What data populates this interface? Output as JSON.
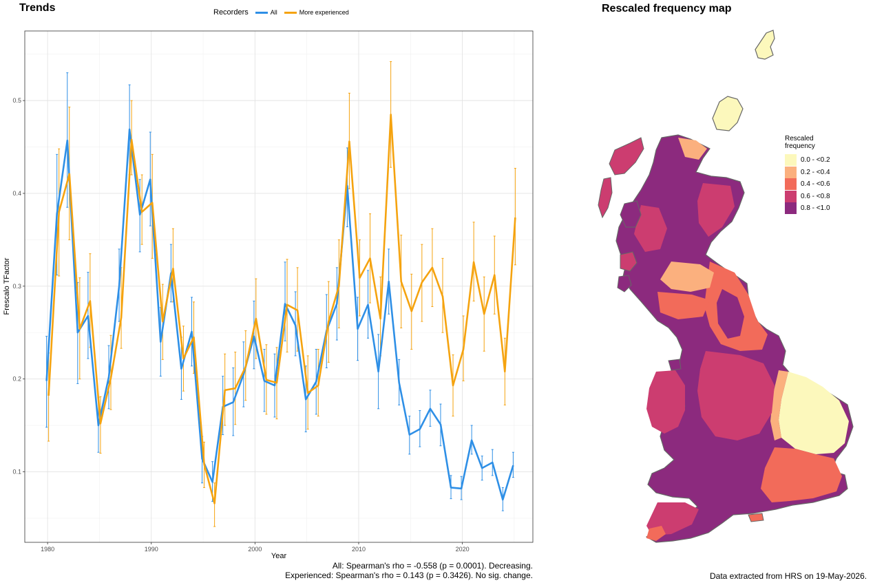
{
  "panels": {
    "trends_title": "Trends",
    "map_title": "Rescaled frequency map"
  },
  "legend": {
    "title": "Recorders",
    "items": [
      {
        "label": "All",
        "color": "#2E8FE6"
      },
      {
        "label": "More experienced",
        "color": "#F5A30F"
      }
    ]
  },
  "stats": {
    "line1": "All: Spearman's rho = -0.558 (p = 0.0001). Decreasing.",
    "line2": "Experienced: Spearman's rho = 0.143 (p = 0.3426). No sig. change."
  },
  "map_legend": {
    "title_line1": "Rescaled",
    "title_line2": "frequency",
    "classes": [
      {
        "label": "0.0 - <0.2",
        "color": "#FCF8BC"
      },
      {
        "label": "0.2 - <0.4",
        "color": "#FBB07E"
      },
      {
        "label": "0.4 - <0.6",
        "color": "#F26B5A"
      },
      {
        "label": "0.6 - <0.8",
        "color": "#CC3D70"
      },
      {
        "label": "0.8 - <1.0",
        "color": "#8C2A7E"
      }
    ]
  },
  "data_note": "Data extracted from HRS on 19-May-2026.",
  "chart_data": {
    "type": "line",
    "xlabel": "Year",
    "ylabel": "Frescalo TFactor",
    "xlim": [
      1977.8,
      2026.8
    ],
    "ylim": [
      0.024,
      0.575
    ],
    "x_ticks": [
      1980,
      1990,
      2000,
      2010,
      2020
    ],
    "y_ticks": [
      0.1,
      0.2,
      0.3,
      0.4,
      0.5
    ],
    "grid": true,
    "legend_position": "top",
    "error_bars": true,
    "series": [
      {
        "name": "All",
        "color": "#2E8FE6",
        "points": [
          [
            1980,
            0.198,
            0.148,
            0.246
          ],
          [
            1981,
            0.378,
            0.312,
            0.442
          ],
          [
            1982,
            0.457,
            0.385,
            0.53
          ],
          [
            1983,
            0.25,
            0.195,
            0.304
          ],
          [
            1984,
            0.268,
            0.222,
            0.315
          ],
          [
            1985,
            0.15,
            0.121,
            0.18
          ],
          [
            1986,
            0.202,
            0.168,
            0.236
          ],
          [
            1987,
            0.3,
            0.262,
            0.34
          ],
          [
            1988,
            0.469,
            0.42,
            0.517
          ],
          [
            1989,
            0.377,
            0.337,
            0.415
          ],
          [
            1990,
            0.415,
            0.365,
            0.466
          ],
          [
            1991,
            0.24,
            0.203,
            0.277
          ],
          [
            1992,
            0.314,
            0.283,
            0.345
          ],
          [
            1993,
            0.211,
            0.178,
            0.245
          ],
          [
            1994,
            0.251,
            0.214,
            0.288
          ],
          [
            1995,
            0.114,
            0.088,
            0.138
          ],
          [
            1996,
            0.089,
            0.068,
            0.111
          ],
          [
            1997,
            0.17,
            0.14,
            0.203
          ],
          [
            1998,
            0.175,
            0.139,
            0.212
          ],
          [
            1999,
            0.205,
            0.17,
            0.24
          ],
          [
            2000,
            0.246,
            0.211,
            0.284
          ],
          [
            2001,
            0.198,
            0.165,
            0.232
          ],
          [
            2002,
            0.193,
            0.159,
            0.227
          ],
          [
            2003,
            0.281,
            0.241,
            0.326
          ],
          [
            2004,
            0.258,
            0.225,
            0.294
          ],
          [
            2005,
            0.178,
            0.143,
            0.214
          ],
          [
            2006,
            0.197,
            0.162,
            0.232
          ],
          [
            2007,
            0.252,
            0.212,
            0.291
          ],
          [
            2008,
            0.281,
            0.242,
            0.32
          ],
          [
            2009,
            0.408,
            0.364,
            0.449
          ],
          [
            2010,
            0.254,
            0.22,
            0.288
          ],
          [
            2011,
            0.28,
            0.244,
            0.317
          ],
          [
            2012,
            0.208,
            0.168,
            0.248
          ],
          [
            2013,
            0.305,
            0.27,
            0.34
          ],
          [
            2014,
            0.196,
            0.172,
            0.221
          ],
          [
            2015,
            0.14,
            0.119,
            0.16
          ],
          [
            2016,
            0.146,
            0.127,
            0.166
          ],
          [
            2017,
            0.168,
            0.149,
            0.188
          ],
          [
            2018,
            0.151,
            0.128,
            0.173
          ],
          [
            2019,
            0.083,
            0.071,
            0.096
          ],
          [
            2020,
            0.082,
            0.07,
            0.095
          ],
          [
            2021,
            0.134,
            0.119,
            0.15
          ],
          [
            2022,
            0.104,
            0.091,
            0.117
          ],
          [
            2023,
            0.11,
            0.096,
            0.124
          ],
          [
            2024,
            0.07,
            0.058,
            0.083
          ],
          [
            2025,
            0.107,
            0.094,
            0.121
          ]
        ]
      },
      {
        "name": "More experienced",
        "color": "#F5A30F",
        "points": [
          [
            1980,
            0.182,
            0.133,
            0.228
          ],
          [
            1981,
            0.38,
            0.311,
            0.448
          ],
          [
            1982,
            0.421,
            0.35,
            0.493
          ],
          [
            1983,
            0.254,
            0.2,
            0.309
          ],
          [
            1984,
            0.284,
            0.234,
            0.335
          ],
          [
            1985,
            0.152,
            0.12,
            0.181
          ],
          [
            1986,
            0.201,
            0.167,
            0.247
          ],
          [
            1987,
            0.266,
            0.233,
            0.32
          ],
          [
            1988,
            0.458,
            0.42,
            0.5
          ],
          [
            1989,
            0.38,
            0.345,
            0.42
          ],
          [
            1990,
            0.39,
            0.33,
            0.442
          ],
          [
            1991,
            0.262,
            0.221,
            0.302
          ],
          [
            1992,
            0.319,
            0.283,
            0.362
          ],
          [
            1993,
            0.222,
            0.187,
            0.257
          ],
          [
            1994,
            0.245,
            0.206,
            0.283
          ],
          [
            1995,
            0.108,
            0.083,
            0.132
          ],
          [
            1996,
            0.066,
            0.041,
            0.088
          ],
          [
            1997,
            0.188,
            0.15,
            0.227
          ],
          [
            1998,
            0.19,
            0.151,
            0.229
          ],
          [
            1999,
            0.213,
            0.177,
            0.252
          ],
          [
            2000,
            0.265,
            0.222,
            0.308
          ],
          [
            2001,
            0.199,
            0.162,
            0.237
          ],
          [
            2002,
            0.196,
            0.157,
            0.234
          ],
          [
            2003,
            0.28,
            0.229,
            0.329
          ],
          [
            2004,
            0.274,
            0.23,
            0.32
          ],
          [
            2005,
            0.185,
            0.146,
            0.225
          ],
          [
            2006,
            0.193,
            0.16,
            0.232
          ],
          [
            2007,
            0.262,
            0.218,
            0.305
          ],
          [
            2008,
            0.3,
            0.255,
            0.35
          ],
          [
            2009,
            0.456,
            0.405,
            0.508
          ],
          [
            2010,
            0.309,
            0.268,
            0.35
          ],
          [
            2011,
            0.33,
            0.282,
            0.378
          ],
          [
            2012,
            0.265,
            0.225,
            0.31
          ],
          [
            2013,
            0.485,
            0.428,
            0.542
          ],
          [
            2014,
            0.305,
            0.255,
            0.355
          ],
          [
            2015,
            0.273,
            0.232,
            0.313
          ],
          [
            2016,
            0.304,
            0.262,
            0.345
          ],
          [
            2017,
            0.32,
            0.278,
            0.362
          ],
          [
            2018,
            0.289,
            0.25,
            0.33
          ],
          [
            2019,
            0.193,
            0.16,
            0.226
          ],
          [
            2020,
            0.232,
            0.198,
            0.268
          ],
          [
            2021,
            0.326,
            0.284,
            0.369
          ],
          [
            2022,
            0.27,
            0.23,
            0.31
          ],
          [
            2023,
            0.312,
            0.27,
            0.354
          ],
          [
            2024,
            0.208,
            0.172,
            0.244
          ],
          [
            2025,
            0.374,
            0.323,
            0.427
          ]
        ]
      }
    ]
  }
}
